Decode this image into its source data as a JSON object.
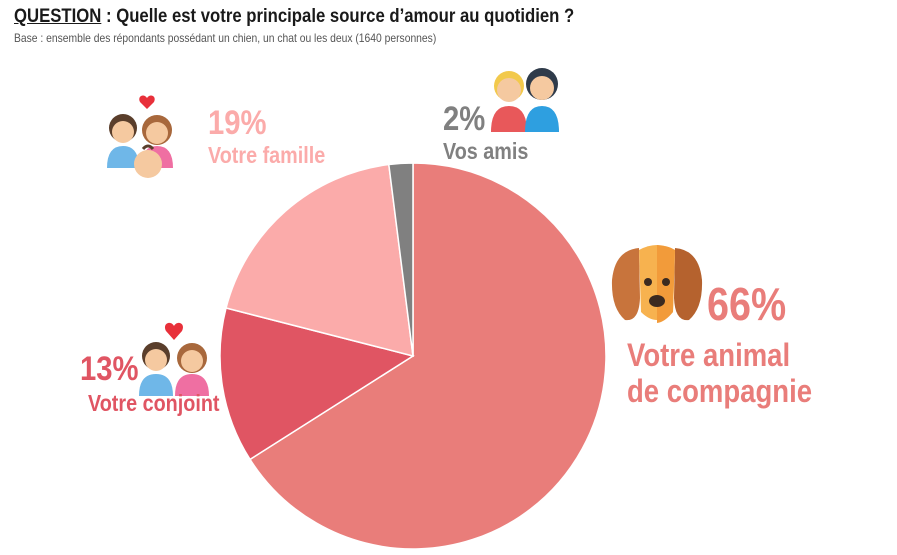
{
  "header": {
    "question_keyword": "QUESTION",
    "question_sep": " : ",
    "question_text": "Quelle est votre principale source d’amour au quotidien ?",
    "base": "Base : ensemble des répondants possédant un chien, un chat ou les deux (1640 personnes)"
  },
  "chart_data": {
    "type": "pie",
    "title": "Quelle est votre principale source d’amour au quotidien ?",
    "slices": [
      {
        "label": "Votre animal de compagnie",
        "value": 66,
        "display": "66%",
        "color": "#E97D7A"
      },
      {
        "label": "Votre conjoint",
        "value": 13,
        "display": "13%",
        "color": "#E05563"
      },
      {
        "label": "Votre famille",
        "value": 19,
        "display": "19%",
        "color": "#FBABAA"
      },
      {
        "label": "Vos amis",
        "value": 2,
        "display": "2%",
        "color": "#808080"
      }
    ],
    "label_lines": {
      "animal": [
        "Votre animal",
        "de compagnie"
      ]
    }
  },
  "icons": {
    "animal": "dog-icon",
    "conjoint": "couple-heart-icon",
    "famille": "family-icon",
    "amis": "friends-icon"
  }
}
